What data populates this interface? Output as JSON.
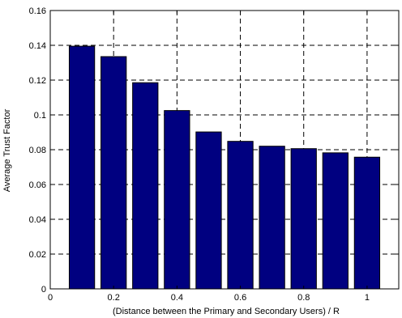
{
  "chart_data": {
    "type": "bar",
    "title": "",
    "xlabel": "(Distance between the Primary and Secondary Users) / R",
    "ylabel": "Average Trust Factor",
    "x": [
      0.1,
      0.2,
      0.3,
      0.4,
      0.5,
      0.6,
      0.7,
      0.8,
      0.9,
      1.0
    ],
    "values": [
      0.1395,
      0.1335,
      0.1185,
      0.1025,
      0.0902,
      0.0848,
      0.082,
      0.0806,
      0.0782,
      0.0757
    ],
    "xlim": [
      0,
      1.1
    ],
    "ylim": [
      0,
      0.16
    ],
    "xticks": [
      "0",
      "0.2",
      "0.4",
      "0.6",
      "0.8",
      "1"
    ],
    "xtick_values": [
      0,
      0.2,
      0.4,
      0.6,
      0.8,
      1.0
    ],
    "yticks": [
      "0",
      "0.02",
      "0.04",
      "0.06",
      "0.08",
      "0.1",
      "0.12",
      "0.14",
      "0.16"
    ],
    "ytick_values": [
      0,
      0.02,
      0.04,
      0.06,
      0.08,
      0.1,
      0.12,
      0.14,
      0.16
    ],
    "bar_width": 0.08,
    "grid": true,
    "bar_color": "#000080"
  }
}
